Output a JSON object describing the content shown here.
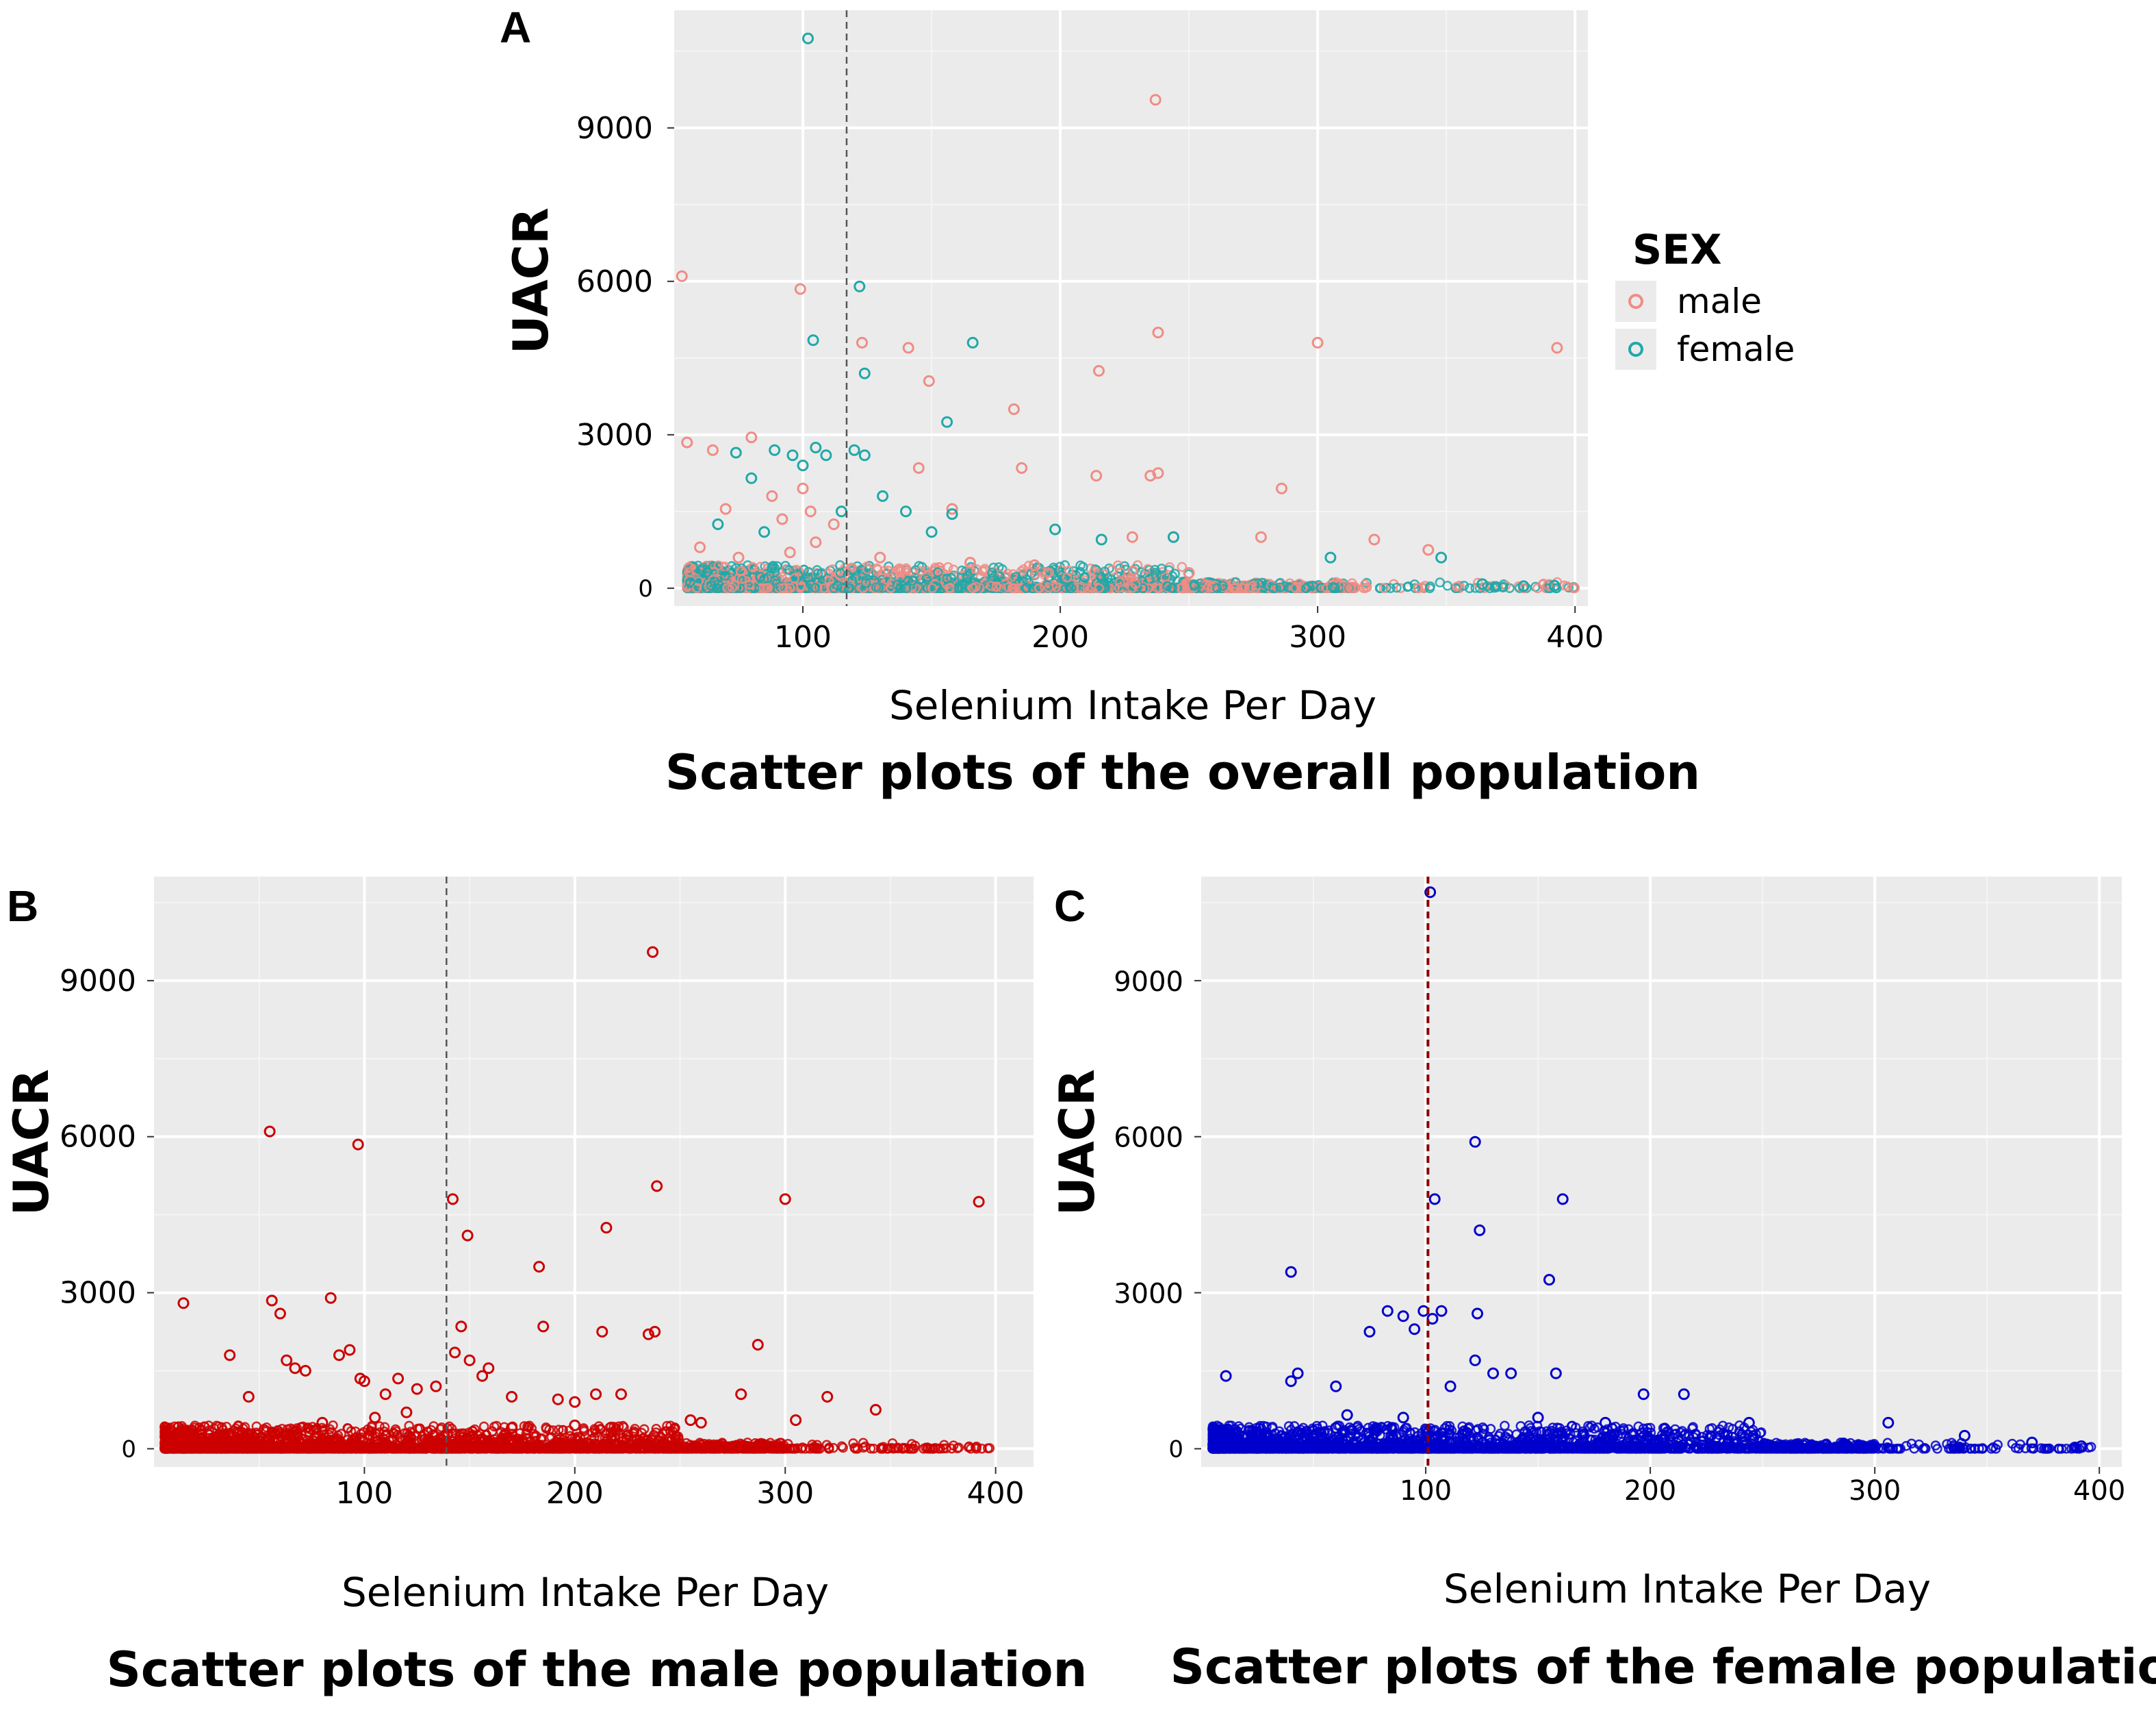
{
  "chart_data": [
    {
      "panel": "A",
      "type": "scatter",
      "caption": "Scatter plots of the overall population",
      "xlabel": "Selenium Intake Per Day",
      "ylabel": "UACR",
      "xlim": [
        50,
        405
      ],
      "ylim": [
        -350,
        11300
      ],
      "xticks": [
        100,
        200,
        300,
        400
      ],
      "yticks": [
        0,
        3000,
        6000,
        9000
      ],
      "cutoff_x": 117,
      "legend": {
        "title": "SEX",
        "position": "right",
        "entries": [
          {
            "name": "male",
            "color": "#F08C84"
          },
          {
            "name": "female",
            "color": "#20A8A8"
          }
        ]
      },
      "series": [
        {
          "name": "male",
          "color": "#F08C84",
          "points": [
            [
              53,
              6100
            ],
            [
              55,
              2850
            ],
            [
              65,
              2700
            ],
            [
              70,
              1550
            ],
            [
              80,
              2950
            ],
            [
              88,
              1800
            ],
            [
              92,
              1350
            ],
            [
              99,
              5850
            ],
            [
              100,
              1950
            ],
            [
              103,
              1500
            ],
            [
              112,
              1250
            ],
            [
              123,
              4800
            ],
            [
              141,
              4700
            ],
            [
              145,
              2350
            ],
            [
              149,
              4050
            ],
            [
              158,
              1550
            ],
            [
              182,
              3500
            ],
            [
              185,
              2350
            ],
            [
              214,
              2200
            ],
            [
              215,
              4250
            ],
            [
              228,
              1000
            ],
            [
              235,
              2200
            ],
            [
              238,
              2250
            ],
            [
              237,
              9550
            ],
            [
              238,
              5000
            ],
            [
              244,
              1000
            ],
            [
              278,
              1000
            ],
            [
              286,
              1950
            ],
            [
              300,
              4800
            ],
            [
              322,
              950
            ],
            [
              343,
              750
            ],
            [
              393,
              4700
            ],
            [
              60,
              800
            ],
            [
              75,
              600
            ],
            [
              95,
              700
            ],
            [
              105,
              900
            ],
            [
              130,
              600
            ],
            [
              165,
              500
            ],
            [
              190,
              450
            ],
            [
              250,
              300
            ]
          ]
        },
        {
          "name": "female",
          "color": "#20A8A8",
          "points": [
            [
              102,
              10750
            ],
            [
              104,
              4850
            ],
            [
              122,
              5900
            ],
            [
              124,
              4200
            ],
            [
              166,
              4800
            ],
            [
              156,
              3250
            ],
            [
              74,
              2650
            ],
            [
              80,
              2150
            ],
            [
              89,
              2700
            ],
            [
              96,
              2600
            ],
            [
              100,
              2400
            ],
            [
              105,
              2750
            ],
            [
              109,
              2600
            ],
            [
              120,
              2700
            ],
            [
              124,
              2600
            ],
            [
              131,
              1800
            ],
            [
              115,
              1500
            ],
            [
              140,
              1500
            ],
            [
              158,
              1450
            ],
            [
              67,
              1250
            ],
            [
              85,
              1100
            ],
            [
              150,
              1100
            ],
            [
              198,
              1150
            ],
            [
              216,
              950
            ],
            [
              244,
              1000
            ],
            [
              305,
              600
            ],
            [
              348,
              600
            ],
            [
              364,
              80
            ],
            [
              380,
              40
            ],
            [
              392,
              50
            ]
          ]
        }
      ]
    },
    {
      "panel": "B",
      "type": "scatter",
      "caption": "Scatter plots of the male population",
      "xlabel": "Selenium Intake Per Day",
      "ylabel": "UACR",
      "xlim": [
        0,
        418
      ],
      "ylim": [
        -350,
        11000
      ],
      "xticks": [
        100,
        200,
        300,
        400
      ],
      "yticks": [
        0,
        3000,
        6000,
        9000
      ],
      "cutoff_x": 139,
      "color": "#CC0000",
      "points": [
        [
          14,
          2800
        ],
        [
          36,
          1800
        ],
        [
          45,
          1000
        ],
        [
          55,
          6100
        ],
        [
          56,
          2850
        ],
        [
          60,
          2600
        ],
        [
          63,
          1700
        ],
        [
          67,
          1550
        ],
        [
          72,
          1500
        ],
        [
          84,
          2900
        ],
        [
          88,
          1800
        ],
        [
          93,
          1900
        ],
        [
          97,
          5850
        ],
        [
          98,
          1350
        ],
        [
          100,
          1300
        ],
        [
          110,
          1050
        ],
        [
          116,
          1350
        ],
        [
          125,
          1150
        ],
        [
          134,
          1200
        ],
        [
          142,
          4800
        ],
        [
          143,
          1850
        ],
        [
          146,
          2350
        ],
        [
          149,
          4100
        ],
        [
          150,
          1700
        ],
        [
          156,
          1400
        ],
        [
          159,
          1550
        ],
        [
          170,
          1000
        ],
        [
          183,
          3500
        ],
        [
          185,
          2350
        ],
        [
          192,
          950
        ],
        [
          200,
          900
        ],
        [
          210,
          1050
        ],
        [
          213,
          2250
        ],
        [
          215,
          4250
        ],
        [
          222,
          1050
        ],
        [
          235,
          2200
        ],
        [
          238,
          2250
        ],
        [
          237,
          9550
        ],
        [
          239,
          5050
        ],
        [
          255,
          550
        ],
        [
          260,
          500
        ],
        [
          279,
          1050
        ],
        [
          287,
          2000
        ],
        [
          300,
          4800
        ],
        [
          305,
          550
        ],
        [
          320,
          1000
        ],
        [
          343,
          750
        ],
        [
          392,
          4750
        ],
        [
          120,
          700
        ],
        [
          105,
          600
        ],
        [
          80,
          500
        ],
        [
          170,
          400
        ],
        [
          200,
          450
        ]
      ]
    },
    {
      "panel": "C",
      "type": "scatter",
      "caption": "Scatter plots of the female population",
      "xlabel": "Selenium Intake Per Day",
      "ylabel": "UACR",
      "xlim": [
        0,
        410
      ],
      "ylim": [
        -350,
        11000
      ],
      "xticks": [
        100,
        200,
        300,
        400
      ],
      "yticks": [
        0,
        3000,
        6000,
        9000
      ],
      "cutoff_x": 101,
      "color": "#0000CC",
      "points": [
        [
          102,
          10700
        ],
        [
          104,
          4800
        ],
        [
          122,
          5900
        ],
        [
          124,
          4200
        ],
        [
          161,
          4800
        ],
        [
          155,
          3250
        ],
        [
          40,
          3400
        ],
        [
          11,
          1400
        ],
        [
          40,
          1300
        ],
        [
          43,
          1450
        ],
        [
          60,
          1200
        ],
        [
          65,
          650
        ],
        [
          75,
          2250
        ],
        [
          83,
          2650
        ],
        [
          90,
          2550
        ],
        [
          95,
          2300
        ],
        [
          99,
          2650
        ],
        [
          103,
          2500
        ],
        [
          107,
          2650
        ],
        [
          123,
          2600
        ],
        [
          111,
          1200
        ],
        [
          122,
          1700
        ],
        [
          130,
          1450
        ],
        [
          138,
          1450
        ],
        [
          158,
          1450
        ],
        [
          197,
          1050
        ],
        [
          215,
          1050
        ],
        [
          244,
          500
        ],
        [
          306,
          500
        ],
        [
          340,
          250
        ],
        [
          370,
          120
        ],
        [
          392,
          50
        ],
        [
          90,
          600
        ],
        [
          150,
          600
        ],
        [
          180,
          500
        ],
        [
          60,
          400
        ]
      ]
    }
  ]
}
